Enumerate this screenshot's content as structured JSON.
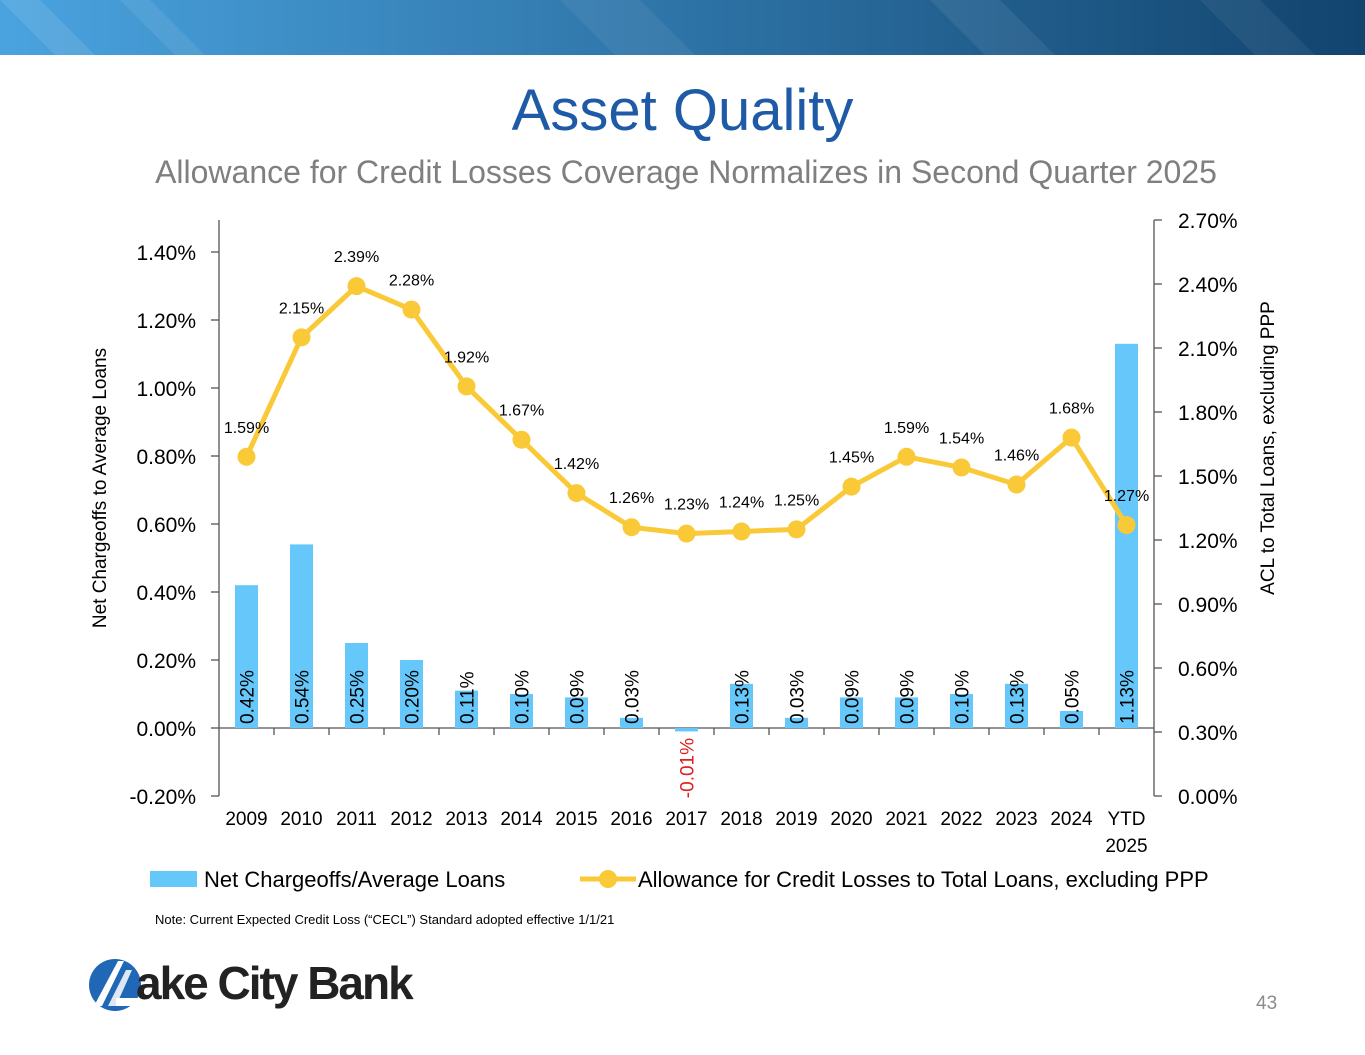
{
  "slide": {
    "title": "Asset Quality",
    "subtitle": "Allowance for Credit Losses Coverage Normalizes in Second Quarter 2025",
    "note": "Note: Current Expected Credit Loss (“CECL”) Standard adopted effective 1/1/21",
    "logo_text": "ake City Bank",
    "page_number": "43"
  },
  "colors": {
    "banner_start": "#4aa3df",
    "banner_end": "#12446e",
    "title": "#1f5aa6",
    "bar": "#66c8fa",
    "line": "#fac937",
    "negative_label": "#e0201a"
  },
  "chart_data": {
    "type": "bar",
    "categories": [
      "2009",
      "2010",
      "2011",
      "2012",
      "2013",
      "2014",
      "2015",
      "2016",
      "2017",
      "2018",
      "2019",
      "2020",
      "2021",
      "2022",
      "2023",
      "2024",
      "YTD 2025"
    ],
    "series": [
      {
        "name": "Net Chargeoffs/Average Loans",
        "type": "bar",
        "axis": "left",
        "values": [
          0.42,
          0.54,
          0.25,
          0.2,
          0.11,
          0.1,
          0.09,
          0.03,
          -0.01,
          0.13,
          0.03,
          0.09,
          0.09,
          0.1,
          0.13,
          0.05,
          1.13
        ],
        "labels": [
          "0.42%",
          "0.54%",
          "0.25%",
          "0.20%",
          "0.11%",
          "0.10%",
          "0.09%",
          "0.03%",
          "-0.01%",
          "0.13%",
          "0.03%",
          "0.09%",
          "0.09%",
          "0.10%",
          "0.13%",
          "0.05%",
          "1.13%"
        ]
      },
      {
        "name": "Allowance for Credit Losses to Total Loans, excluding PPP",
        "type": "line",
        "axis": "right",
        "values": [
          1.59,
          2.15,
          2.39,
          2.28,
          1.92,
          1.67,
          1.42,
          1.26,
          1.23,
          1.24,
          1.25,
          1.45,
          1.59,
          1.54,
          1.46,
          1.68,
          1.27
        ],
        "labels": [
          "1.59%",
          "2.15%",
          "2.39%",
          "2.28%",
          "1.92%",
          "1.67%",
          "1.42%",
          "1.26%",
          "1.23%",
          "1.24%",
          "1.25%",
          "1.45%",
          "1.59%",
          "1.54%",
          "1.46%",
          "1.68%",
          "1.27%"
        ]
      }
    ],
    "ylabel": "Net Chargeoffs to Average Loans",
    "y2label": "ACL to Total Loans, excluding PPP",
    "ylim": [
      -0.2,
      1.5
    ],
    "y2lim": [
      0,
      2.7
    ],
    "yticks": [
      -0.2,
      0,
      0.2,
      0.4,
      0.6,
      0.8,
      1.0,
      1.2,
      1.4
    ],
    "ytick_labels": [
      "-0.20%",
      "0.00%",
      "0.20%",
      "0.40%",
      "0.60%",
      "0.80%",
      "1.00%",
      "1.20%",
      "1.40%"
    ],
    "y2ticks": [
      0,
      0.3,
      0.6,
      0.9,
      1.2,
      1.5,
      1.8,
      2.1,
      2.4,
      2.7
    ],
    "y2tick_labels": [
      "0.00%",
      "0.30%",
      "0.60%",
      "0.90%",
      "1.20%",
      "1.50%",
      "1.80%",
      "2.10%",
      "2.40%",
      "2.70%"
    ],
    "legend": "bottom",
    "grid": false
  }
}
